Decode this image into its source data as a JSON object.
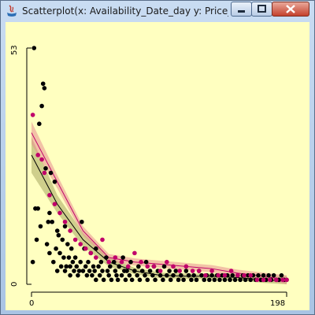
{
  "window": {
    "title": "Scatterplot(x: Availability_Date_day y: Price_per...",
    "buttons": {
      "minimize": "minimize-icon",
      "maximize": "maximize-icon",
      "close": "close-icon"
    }
  },
  "colors": {
    "background": "#ffffc0",
    "black_series": "#000000",
    "pink_series": "#c0006a",
    "black_band": "#a8a860",
    "pink_band": "#e89090"
  },
  "chart_data": {
    "type": "scatter",
    "title": "",
    "xlabel": "",
    "ylabel": "",
    "xlim": [
      0,
      198
    ],
    "ylim": [
      0,
      53
    ],
    "x_ticks": [
      "0",
      "198"
    ],
    "y_ticks": [
      "0",
      "53"
    ],
    "grid": false,
    "series": [
      {
        "color": "#000000",
        "points": [
          [
            1,
            5
          ],
          [
            2,
            53
          ],
          [
            3,
            17
          ],
          [
            4,
            10
          ],
          [
            5,
            17
          ],
          [
            6,
            36
          ],
          [
            7,
            13
          ],
          [
            8,
            40
          ],
          [
            9,
            45
          ],
          [
            10,
            44
          ],
          [
            11,
            26
          ],
          [
            12,
            9
          ],
          [
            13,
            14
          ],
          [
            14,
            16
          ],
          [
            14,
            7
          ],
          [
            15,
            25
          ],
          [
            16,
            14
          ],
          [
            17,
            5
          ],
          [
            18,
            23
          ],
          [
            19,
            8
          ],
          [
            20,
            12
          ],
          [
            20,
            3
          ],
          [
            21,
            11
          ],
          [
            22,
            7
          ],
          [
            23,
            4
          ],
          [
            24,
            10
          ],
          [
            25,
            6
          ],
          [
            26,
            13
          ],
          [
            26,
            3
          ],
          [
            27,
            4
          ],
          [
            28,
            9
          ],
          [
            29,
            6
          ],
          [
            30,
            4
          ],
          [
            30,
            2
          ],
          [
            31,
            8
          ],
          [
            32,
            5
          ],
          [
            33,
            3
          ],
          [
            34,
            6
          ],
          [
            35,
            4
          ],
          [
            36,
            2
          ],
          [
            37,
            3
          ],
          [
            38,
            5
          ],
          [
            39,
            14
          ],
          [
            40,
            3
          ],
          [
            41,
            8
          ],
          [
            42,
            4
          ],
          [
            43,
            2
          ],
          [
            44,
            5
          ],
          [
            45,
            3
          ],
          [
            46,
            7
          ],
          [
            47,
            2
          ],
          [
            48,
            4
          ],
          [
            49,
            3
          ],
          [
            50,
            8
          ],
          [
            50,
            1
          ],
          [
            52,
            4
          ],
          [
            53,
            2
          ],
          [
            54,
            5
          ],
          [
            55,
            3
          ],
          [
            56,
            1
          ],
          [
            58,
            6
          ],
          [
            59,
            3
          ],
          [
            60,
            2
          ],
          [
            61,
            4
          ],
          [
            62,
            1
          ],
          [
            64,
            5
          ],
          [
            65,
            3
          ],
          [
            66,
            2
          ],
          [
            67,
            1
          ],
          [
            68,
            4
          ],
          [
            70,
            2
          ],
          [
            71,
            6
          ],
          [
            72,
            3
          ],
          [
            73,
            1
          ],
          [
            74,
            3
          ],
          [
            76,
            2
          ],
          [
            77,
            5
          ],
          [
            78,
            1
          ],
          [
            80,
            3
          ],
          [
            82,
            2
          ],
          [
            83,
            4
          ],
          [
            84,
            1
          ],
          [
            86,
            3
          ],
          [
            88,
            2
          ],
          [
            89,
            5
          ],
          [
            90,
            1
          ],
          [
            92,
            3
          ],
          [
            94,
            2
          ],
          [
            95,
            4
          ],
          [
            96,
            1
          ],
          [
            98,
            3
          ],
          [
            100,
            2
          ],
          [
            102,
            1
          ],
          [
            103,
            4
          ],
          [
            105,
            2
          ],
          [
            107,
            3
          ],
          [
            108,
            1
          ],
          [
            110,
            2
          ],
          [
            112,
            3
          ],
          [
            114,
            1
          ],
          [
            116,
            2
          ],
          [
            118,
            1
          ],
          [
            120,
            3
          ],
          [
            122,
            2
          ],
          [
            124,
            1
          ],
          [
            126,
            2
          ],
          [
            128,
            1
          ],
          [
            130,
            3
          ],
          [
            132,
            2
          ],
          [
            134,
            1
          ],
          [
            136,
            2
          ],
          [
            138,
            1
          ],
          [
            140,
            2
          ],
          [
            142,
            1
          ],
          [
            144,
            2
          ],
          [
            146,
            1
          ],
          [
            148,
            2
          ],
          [
            150,
            1
          ],
          [
            152,
            2
          ],
          [
            154,
            1
          ],
          [
            156,
            2
          ],
          [
            158,
            1
          ],
          [
            160,
            2
          ],
          [
            162,
            1
          ],
          [
            164,
            2
          ],
          [
            166,
            1
          ],
          [
            168,
            2
          ],
          [
            170,
            1
          ],
          [
            172,
            2
          ],
          [
            174,
            1
          ],
          [
            176,
            2
          ],
          [
            178,
            1
          ],
          [
            180,
            2
          ],
          [
            182,
            1
          ],
          [
            184,
            2
          ],
          [
            186,
            1
          ],
          [
            188,
            2
          ],
          [
            190,
            1
          ],
          [
            192,
            1
          ],
          [
            194,
            2
          ],
          [
            196,
            1
          ],
          [
            198,
            1
          ]
        ]
      },
      {
        "color": "#c0006a",
        "points": [
          [
            1,
            38
          ],
          [
            5,
            29
          ],
          [
            8,
            28
          ],
          [
            10,
            25
          ],
          [
            14,
            20
          ],
          [
            18,
            18
          ],
          [
            22,
            16
          ],
          [
            26,
            14
          ],
          [
            30,
            12
          ],
          [
            34,
            10
          ],
          [
            38,
            9
          ],
          [
            42,
            8
          ],
          [
            46,
            7
          ],
          [
            50,
            6
          ],
          [
            55,
            10
          ],
          [
            60,
            5
          ],
          [
            65,
            6
          ],
          [
            70,
            5
          ],
          [
            75,
            4
          ],
          [
            80,
            7
          ],
          [
            85,
            5
          ],
          [
            90,
            4
          ],
          [
            95,
            4
          ],
          [
            100,
            3
          ],
          [
            105,
            5
          ],
          [
            110,
            4
          ],
          [
            115,
            3
          ],
          [
            120,
            4
          ],
          [
            125,
            3
          ],
          [
            130,
            3
          ],
          [
            135,
            2
          ],
          [
            140,
            3
          ],
          [
            145,
            2
          ],
          [
            150,
            2
          ],
          [
            155,
            3
          ],
          [
            160,
            2
          ],
          [
            165,
            2
          ],
          [
            170,
            2
          ],
          [
            175,
            1
          ],
          [
            180,
            1
          ],
          [
            185,
            1
          ],
          [
            190,
            1
          ],
          [
            195,
            1
          ],
          [
            198,
            1
          ]
        ]
      }
    ],
    "smooth_curves": [
      {
        "color": "#000000",
        "band_color": "#a8a860",
        "points": [
          [
            0,
            29
          ],
          [
            20,
            18
          ],
          [
            40,
            10
          ],
          [
            60,
            5
          ],
          [
            80,
            3
          ],
          [
            100,
            2
          ],
          [
            120,
            1.8
          ],
          [
            140,
            1.8
          ],
          [
            160,
            1.5
          ],
          [
            180,
            1
          ],
          [
            198,
            0.7
          ]
        ],
        "band": [
          [
            0,
            4
          ],
          [
            20,
            2
          ],
          [
            40,
            1.5
          ],
          [
            60,
            1
          ],
          [
            80,
            0.7
          ],
          [
            100,
            0.6
          ],
          [
            120,
            0.6
          ],
          [
            140,
            0.6
          ],
          [
            160,
            0.6
          ],
          [
            180,
            0.7
          ],
          [
            198,
            1.2
          ]
        ]
      },
      {
        "color": "#c0006a",
        "band_color": "#e89090",
        "points": [
          [
            0,
            34
          ],
          [
            20,
            23
          ],
          [
            40,
            12
          ],
          [
            60,
            6
          ],
          [
            80,
            5
          ],
          [
            100,
            4.5
          ],
          [
            120,
            4
          ],
          [
            140,
            3.5
          ],
          [
            160,
            2.5
          ],
          [
            180,
            1.8
          ],
          [
            198,
            1
          ]
        ],
        "band": [
          [
            0,
            2.5
          ],
          [
            20,
            1.5
          ],
          [
            40,
            1
          ],
          [
            60,
            0.8
          ],
          [
            80,
            0.8
          ],
          [
            100,
            0.8
          ],
          [
            120,
            0.8
          ],
          [
            140,
            0.8
          ],
          [
            160,
            0.8
          ],
          [
            180,
            0.8
          ],
          [
            198,
            1
          ]
        ]
      }
    ]
  }
}
